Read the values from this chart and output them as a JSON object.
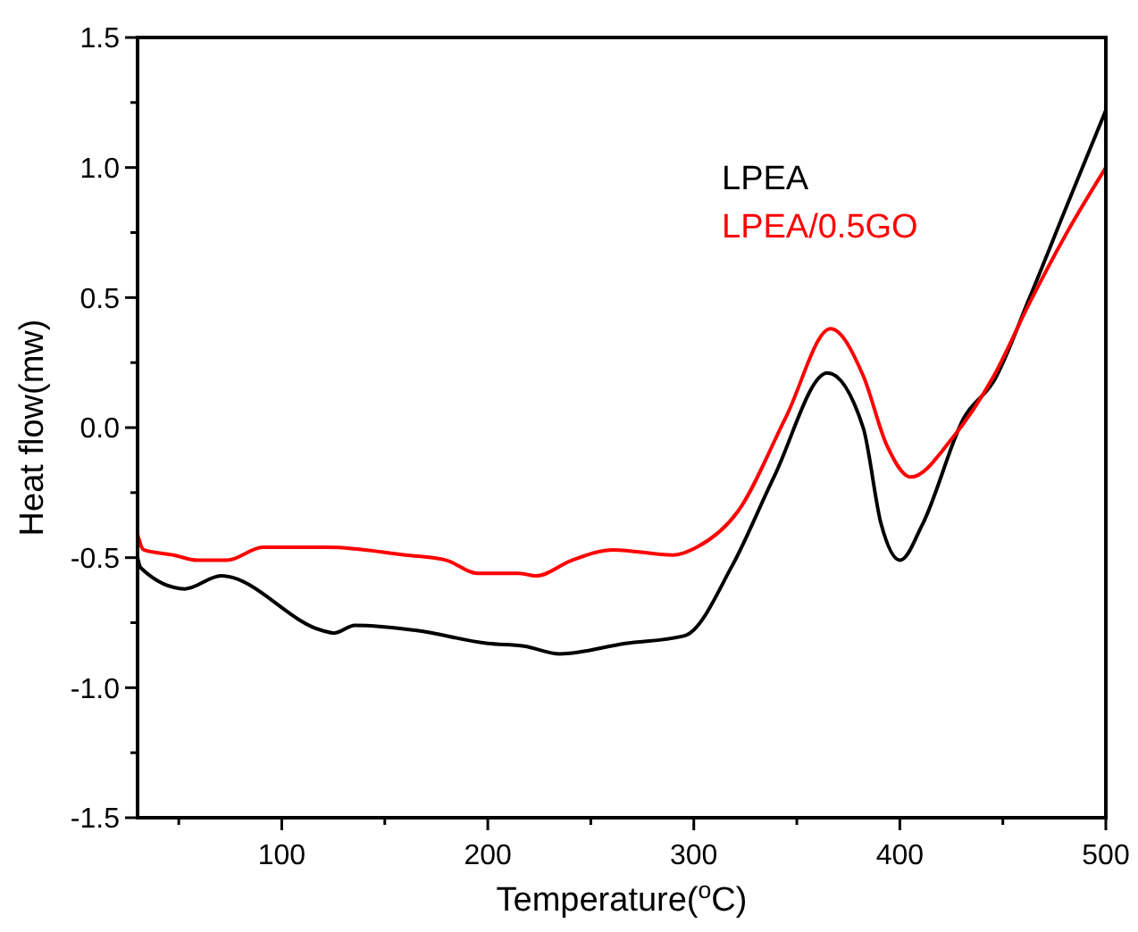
{
  "chart_data": {
    "type": "line",
    "xlabel": "Temperature($^{o}$C)",
    "ylabel": "Heat flow(mw)",
    "xlim": [
      30,
      500
    ],
    "ylim": [
      -1.5,
      1.5
    ],
    "xticks": [
      {
        "value": 50,
        "label": null
      },
      100,
      {
        "value": 150,
        "label": null
      },
      200,
      {
        "value": 250,
        "label": null
      },
      300,
      {
        "value": 350,
        "label": null
      },
      400,
      {
        "value": 450,
        "label": null
      },
      500
    ],
    "yticks": [
      -1.5,
      {
        "value": -1.25,
        "label": null
      },
      {
        "value": -1,
        "label": "-1.0"
      },
      {
        "value": -0.75,
        "label": null
      },
      -0.5,
      {
        "value": -0.25,
        "label": null
      },
      {
        "value": 0,
        "label": "0.0"
      },
      {
        "value": 0.25,
        "label": null
      },
      0.5,
      {
        "value": 0.75,
        "label": null
      },
      {
        "value": 1,
        "label": "1.0"
      },
      {
        "value": 1.25,
        "label": null
      },
      1.5
    ],
    "grid": false,
    "legend": "top right",
    "marker": "none",
    "line_style": "solid",
    "series": [
      {
        "name": "LPEA",
        "color": "#000000",
        "x": [
          30,
          31.6,
          53,
          70.5,
          119.6,
          125.4,
          135.5,
          165.6,
          200,
          217.6,
          235,
          266.8,
          295.6,
          318.7,
          338.9,
          364.9,
          382.2,
          390.9,
          400.1,
          411.1,
          431.3,
          445.7,
          463,
          480.4,
          500
        ],
        "values": [
          -0.5,
          -0.54,
          -0.62,
          -0.57,
          -0.78,
          -0.79,
          -0.76,
          -0.78,
          -0.83,
          -0.84,
          -0.87,
          -0.83,
          -0.8,
          -0.53,
          -0.19,
          0.21,
          0,
          -0.37,
          -0.51,
          -0.37,
          0.04,
          0.18,
          0.5,
          0.84,
          1.22
        ]
      },
      {
        "name": "LPEA/0.5GO",
        "color": "#ff0000",
        "x": [
          30,
          33,
          47.5,
          59,
          73.5,
          90.8,
          116.7,
          122.5,
          160,
          180,
          194.7,
          214.8,
          223.5,
          240.8,
          261,
          289.9,
          301.4,
          321.6,
          344.7,
          366.4,
          382.2,
          393.8,
          405.3,
          425.5,
          445.7,
          463,
          480.4,
          500
        ],
        "values": [
          -0.41,
          -0.47,
          -0.49,
          -0.51,
          -0.51,
          -0.46,
          -0.46,
          -0.46,
          -0.49,
          -0.51,
          -0.56,
          -0.56,
          -0.57,
          -0.51,
          -0.47,
          -0.49,
          -0.46,
          -0.32,
          0.04,
          0.38,
          0.2,
          -0.07,
          -0.19,
          -0.04,
          0.2,
          0.48,
          0.74,
          1.0
        ]
      }
    ]
  }
}
